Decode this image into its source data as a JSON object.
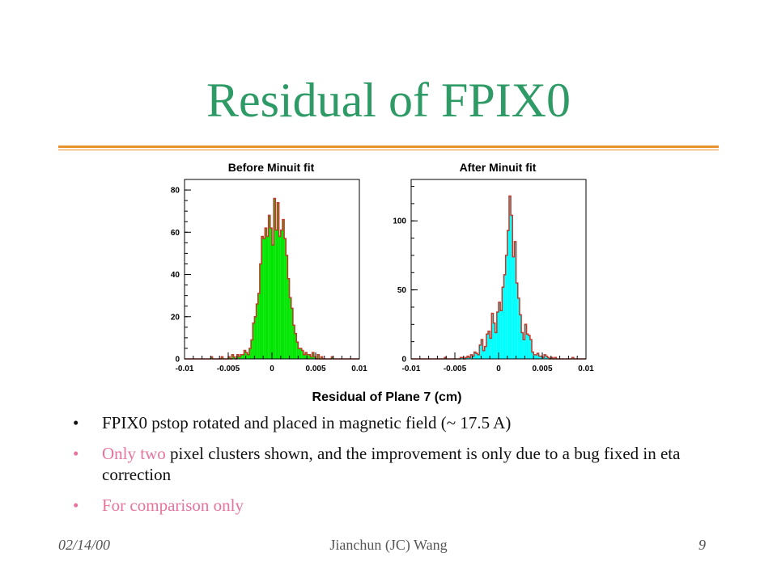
{
  "slide": {
    "title": "Residual of FPIX0",
    "footer": {
      "date": "02/14/00",
      "author": "Jianchun (JC) Wang",
      "page": "9"
    }
  },
  "bullets": [
    {
      "segments": [
        {
          "text": "FPIX0 pstop rotated and placed in magnetic field (~ 17.5 A)",
          "accent": false
        }
      ]
    },
    {
      "segments": [
        {
          "text": "Only two",
          "accent": true
        },
        {
          "text": " pixel clusters shown, and the improvement is only due to a bug fixed in eta correction",
          "accent": false
        }
      ]
    },
    {
      "segments": [
        {
          "text": "For comparison only",
          "accent": true
        }
      ]
    }
  ],
  "colors": {
    "title": "#2e9a66",
    "rule": "#e8922e",
    "accent_text": "#e8739c",
    "body_text": "#111111",
    "hist_outline": "#c0392b",
    "fill_before": "#00e600",
    "fill_after": "#00ffff"
  },
  "chart_data": [
    {
      "type": "bar",
      "title": "Before Minuit fit",
      "xlabel": "Residual of Plane 7 (cm)",
      "ylabel": "",
      "xlim": [
        -0.01,
        0.01
      ],
      "ylim": [
        0,
        85
      ],
      "xticks": [
        "-0.01",
        "-0.005",
        "0",
        "0.005",
        "0.01"
      ],
      "yticks": [
        "0",
        "20",
        "40",
        "60",
        "80"
      ],
      "bin_width": 0.0002,
      "x_start": -0.01,
      "values": [
        0,
        0,
        0,
        0,
        0,
        0,
        0,
        0,
        0,
        0,
        0,
        0,
        0,
        0,
        0,
        1,
        0,
        0,
        0,
        0,
        0,
        1,
        0,
        0,
        0,
        1,
        0,
        2,
        1,
        0,
        2,
        1,
        2,
        2,
        4,
        3,
        2,
        5,
        9,
        17,
        20,
        26,
        31,
        45,
        58,
        57,
        62,
        58,
        68,
        62,
        54,
        76,
        61,
        74,
        58,
        61,
        66,
        57,
        49,
        38,
        29,
        24,
        16,
        12,
        8,
        5,
        5,
        4,
        2,
        3,
        2,
        2,
        1,
        3,
        1,
        0,
        2,
        0,
        1,
        0,
        0,
        0,
        0,
        0,
        1,
        0,
        0,
        0,
        0,
        0,
        0,
        0,
        0,
        0,
        0,
        0,
        0,
        0,
        0,
        0
      ],
      "fill_color": "#00e600"
    },
    {
      "type": "bar",
      "title": "After Minuit fit",
      "xlabel": "Residual of Plane 7 (cm)",
      "ylabel": "",
      "xlim": [
        -0.01,
        0.01
      ],
      "ylim": [
        0,
        130
      ],
      "xticks": [
        "-0.01",
        "-0.005",
        "0",
        "0.005",
        "0.01"
      ],
      "yticks": [
        "0",
        "50",
        "100"
      ],
      "bin_width": 0.0002,
      "x_start": -0.01,
      "values": [
        0,
        0,
        0,
        0,
        0,
        0,
        0,
        0,
        0,
        0,
        0,
        0,
        0,
        0,
        0,
        0,
        0,
        0,
        0,
        1,
        0,
        0,
        0,
        0,
        0,
        0,
        0,
        0,
        1,
        1,
        0,
        1,
        2,
        1,
        3,
        2,
        5,
        4,
        3,
        10,
        14,
        6,
        9,
        18,
        20,
        15,
        33,
        26,
        19,
        34,
        41,
        35,
        52,
        61,
        75,
        93,
        118,
        104,
        74,
        85,
        55,
        44,
        32,
        19,
        14,
        25,
        18,
        17,
        14,
        5,
        3,
        3,
        4,
        2,
        2,
        1,
        3,
        2,
        1,
        0,
        1,
        0,
        1,
        0,
        0,
        0,
        0,
        0,
        0,
        0,
        0,
        0,
        1,
        0,
        0,
        0,
        0,
        0,
        0,
        0
      ],
      "fill_color": "#00ffff"
    }
  ]
}
